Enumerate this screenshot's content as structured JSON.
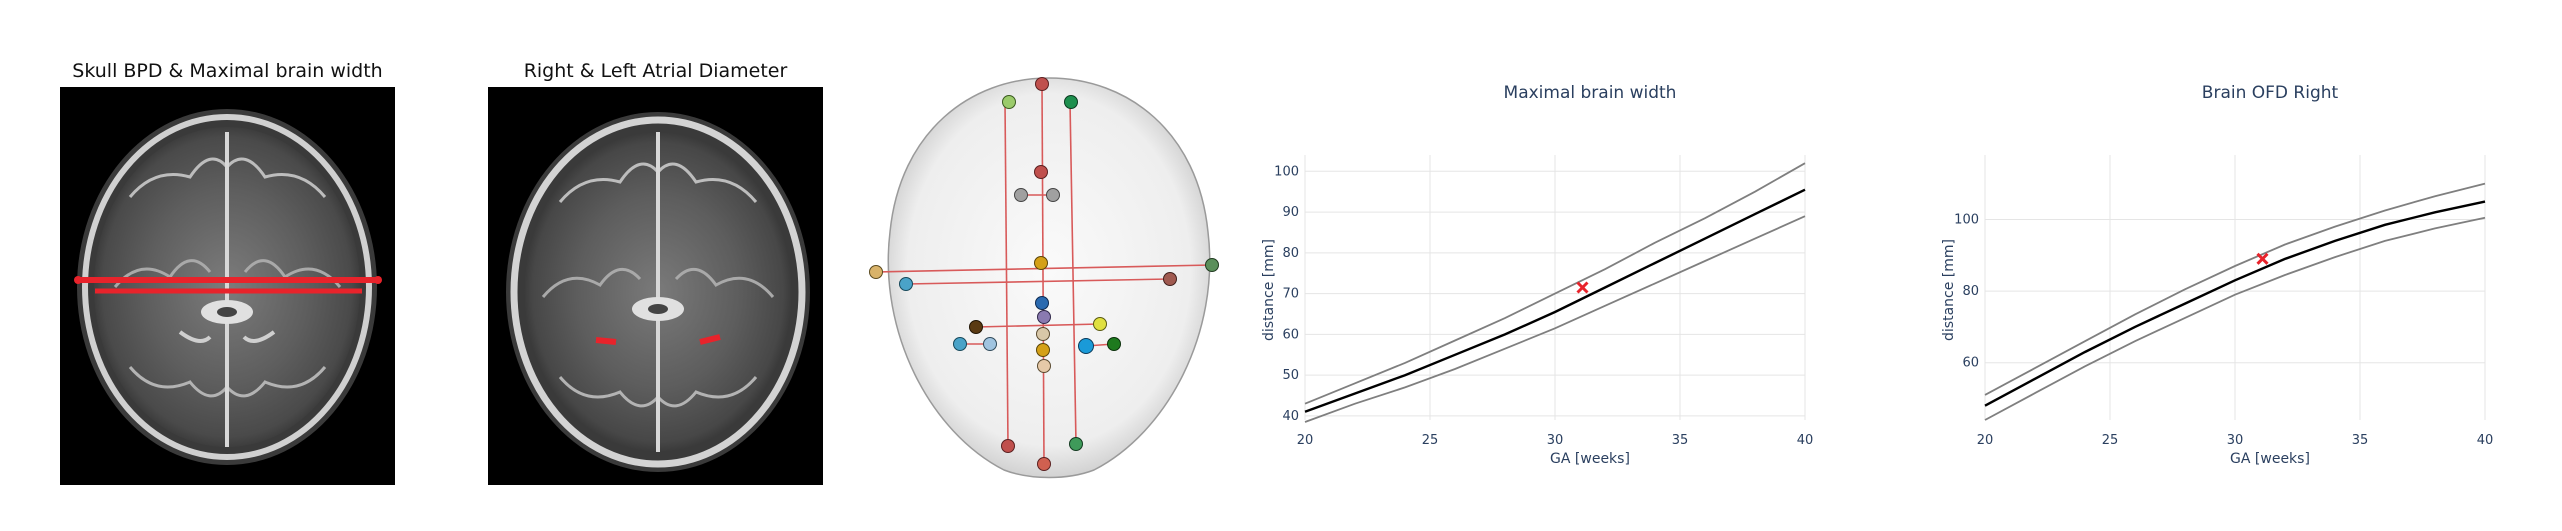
{
  "panels": {
    "mri1": {
      "title": "Skull BPD & Maximal brain width"
    },
    "mri2": {
      "title": "Right & Left Atrial Diameter"
    }
  },
  "colors": {
    "measure_line": "#e8232b",
    "centile_outer": "#7f7f7f",
    "centile_mid": "#000000",
    "marker": "#e8232b",
    "grid": "#e5e5e5",
    "axis_text": "#2a3f5f"
  },
  "chart_data": [
    {
      "type": "line",
      "title": "Maximal brain width",
      "xlabel": "GA [weeks]",
      "ylabel": "distance [mm]",
      "xlim": [
        20,
        40
      ],
      "ylim": [
        39,
        104
      ],
      "xticks": [
        20,
        25,
        30,
        35,
        40
      ],
      "yticks": [
        40,
        50,
        60,
        70,
        80,
        90,
        100
      ],
      "grid": true,
      "x": [
        20,
        22,
        24,
        26,
        28,
        30,
        32,
        34,
        36,
        38,
        40
      ],
      "series": [
        {
          "role": "upper",
          "values": [
            43,
            48,
            53,
            58.5,
            64,
            70,
            76,
            82.5,
            88.5,
            95,
            102
          ]
        },
        {
          "role": "median",
          "values": [
            41,
            45.5,
            50,
            55,
            60,
            65.5,
            71.5,
            77.5,
            83.5,
            89.5,
            95.5
          ]
        },
        {
          "role": "lower",
          "values": [
            38.5,
            43,
            47,
            51.5,
            56.5,
            61.5,
            67,
            72.5,
            78,
            83.5,
            89
          ]
        }
      ],
      "marker": {
        "x": 31.1,
        "y": 71.5,
        "symbol": "x"
      }
    },
    {
      "type": "line",
      "title": "Brain OFD Right",
      "xlabel": "GA [weeks]",
      "ylabel": "distance [mm]",
      "xlim": [
        20,
        40
      ],
      "ylim": [
        44,
        118
      ],
      "xticks": [
        20,
        25,
        30,
        35,
        40
      ],
      "yticks": [
        60,
        80,
        100
      ],
      "grid": true,
      "x": [
        20,
        22,
        24,
        26,
        28,
        30,
        32,
        34,
        36,
        38,
        40
      ],
      "series": [
        {
          "role": "upper",
          "values": [
            51,
            58.5,
            66,
            73.5,
            80.5,
            87,
            93,
            98,
            102.5,
            106.5,
            110
          ]
        },
        {
          "role": "median",
          "values": [
            48,
            55.5,
            63,
            70,
            76.5,
            83,
            89,
            94,
            98.5,
            102,
            105
          ]
        },
        {
          "role": "lower",
          "values": [
            44,
            51.5,
            59,
            66,
            72.5,
            79,
            84.5,
            89.5,
            94,
            97.5,
            100.5
          ]
        }
      ],
      "marker": {
        "x": 31.1,
        "y": 89,
        "symbol": "x"
      }
    }
  ]
}
